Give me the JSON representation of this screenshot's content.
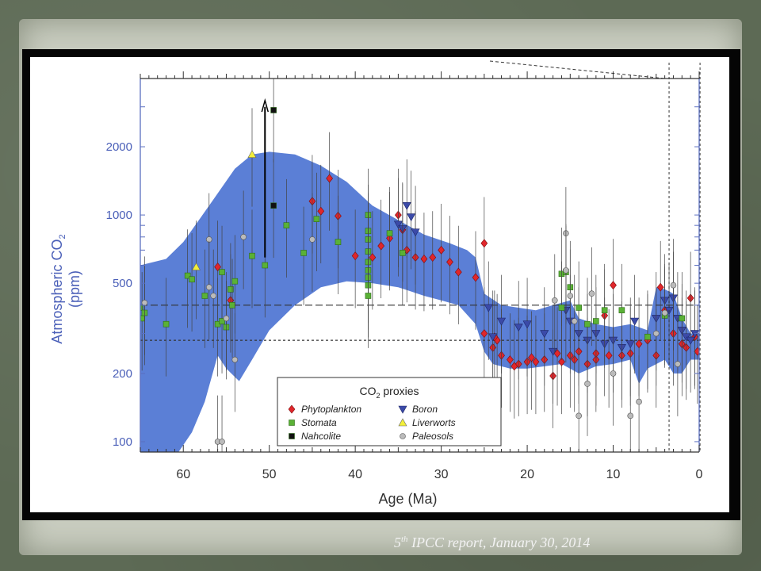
{
  "caption": {
    "sup": "th",
    "prefix": "5",
    "text": " IPCC report, January  30, 2014"
  },
  "chart_data": {
    "type": "scatter",
    "title": "",
    "xlabel": "Age (Ma)",
    "ylabel": "Atmospheric CO2 (ppm)",
    "xlim": [
      65,
      0
    ],
    "ylim": [
      90,
      4000
    ],
    "yscale": "log",
    "x_ticks": [
      60,
      50,
      40,
      30,
      20,
      10,
      0
    ],
    "y_ticks": [
      100,
      200,
      500,
      1000,
      2000
    ],
    "reference_lines": [
      {
        "style": "long-dash",
        "y": 400,
        "x_range": [
          65,
          0
        ]
      },
      {
        "style": "short-dash",
        "y": 280,
        "x_range": [
          65,
          0
        ]
      }
    ],
    "legend": {
      "title": "CO2 proxies",
      "placement": "bottom-center",
      "entries": [
        {
          "label": "Phytoplankton",
          "marker": "diamond",
          "color": "#e0262b"
        },
        {
          "label": "Boron",
          "marker": "triangle-down",
          "color": "#3b4aa8"
        },
        {
          "label": "Stomata",
          "marker": "square",
          "color": "#5ab136"
        },
        {
          "label": "Liverworts",
          "marker": "triangle-up",
          "color": "#f2ef3a"
        },
        {
          "label": "Nahcolite",
          "marker": "square",
          "color": "#111111"
        },
        {
          "label": "Paleosols",
          "marker": "circle",
          "color": "#bbbbbb"
        }
      ]
    },
    "envelope": {
      "color": "#5b7fd6",
      "upper": [
        [
          65,
          600
        ],
        [
          62,
          640
        ],
        [
          60,
          760
        ],
        [
          57,
          1100
        ],
        [
          54,
          1600
        ],
        [
          52,
          1850
        ],
        [
          50,
          1900
        ],
        [
          47,
          1850
        ],
        [
          44,
          1650
        ],
        [
          41,
          1400
        ],
        [
          38,
          1100
        ],
        [
          35,
          950
        ],
        [
          32,
          820
        ],
        [
          29,
          750
        ],
        [
          27,
          700
        ],
        [
          26,
          650
        ],
        [
          25,
          450
        ],
        [
          23,
          400
        ],
        [
          21,
          390
        ],
        [
          19,
          380
        ],
        [
          17,
          400
        ],
        [
          15,
          420
        ],
        [
          14,
          350
        ],
        [
          12,
          330
        ],
        [
          10,
          320
        ],
        [
          8,
          330
        ],
        [
          6,
          310
        ],
        [
          5,
          480
        ],
        [
          4,
          470
        ],
        [
          3,
          450
        ],
        [
          2,
          350
        ],
        [
          1,
          300
        ],
        [
          0,
          300
        ]
      ],
      "lower": [
        [
          0,
          230
        ],
        [
          1,
          230
        ],
        [
          2,
          200
        ],
        [
          3,
          200
        ],
        [
          4,
          230
        ],
        [
          6,
          210
        ],
        [
          7,
          180
        ],
        [
          8,
          230
        ],
        [
          10,
          220
        ],
        [
          12,
          215
        ],
        [
          14,
          200
        ],
        [
          16,
          220
        ],
        [
          18,
          215
        ],
        [
          20,
          210
        ],
        [
          22,
          210
        ],
        [
          24,
          220
        ],
        [
          25,
          250
        ],
        [
          26,
          330
        ],
        [
          28,
          400
        ],
        [
          30,
          420
        ],
        [
          32,
          440
        ],
        [
          35,
          480
        ],
        [
          38,
          500
        ],
        [
          41,
          510
        ],
        [
          44,
          480
        ],
        [
          47,
          400
        ],
        [
          50,
          310
        ],
        [
          52,
          230
        ],
        [
          53.5,
          185
        ],
        [
          55,
          210
        ],
        [
          56,
          240
        ],
        [
          57.5,
          150
        ],
        [
          59,
          110
        ],
        [
          61,
          85
        ],
        [
          65,
          85
        ]
      ]
    },
    "series": [
      {
        "name": "Phytoplankton",
        "points": [
          [
            56,
            590
          ],
          [
            54.5,
            420
          ],
          [
            45,
            1150
          ],
          [
            43,
            1450
          ],
          [
            44,
            1040
          ],
          [
            42,
            990
          ],
          [
            40,
            660
          ],
          [
            38,
            650
          ],
          [
            37,
            730
          ],
          [
            36,
            790
          ],
          [
            35,
            1000
          ],
          [
            34.5,
            860
          ],
          [
            34,
            700
          ],
          [
            33,
            650
          ],
          [
            32,
            640
          ],
          [
            31,
            650
          ],
          [
            30,
            700
          ],
          [
            29,
            620
          ],
          [
            28,
            560
          ],
          [
            26,
            530
          ],
          [
            25,
            750
          ],
          [
            25,
            300
          ],
          [
            24,
            260
          ],
          [
            23.5,
            280
          ],
          [
            23,
            240
          ],
          [
            22,
            230
          ],
          [
            21,
            220
          ],
          [
            20,
            225
          ],
          [
            19,
            225
          ],
          [
            18,
            230
          ],
          [
            17,
            195
          ],
          [
            16,
            225
          ],
          [
            15,
            240
          ],
          [
            14,
            250
          ],
          [
            13,
            220
          ],
          [
            12,
            230
          ],
          [
            11,
            360
          ],
          [
            10,
            490
          ],
          [
            9,
            240
          ],
          [
            8,
            245
          ],
          [
            7,
            270
          ],
          [
            6,
            280
          ],
          [
            5,
            240
          ],
          [
            4.5,
            480
          ],
          [
            4,
            380
          ],
          [
            3,
            300
          ],
          [
            2,
            270
          ],
          [
            1.5,
            260
          ],
          [
            1,
            430
          ],
          [
            0.5,
            290
          ],
          [
            0.2,
            250
          ],
          [
            12,
            245
          ],
          [
            16.5,
            245
          ],
          [
            19.5,
            235
          ],
          [
            21.5,
            215
          ],
          [
            23.8,
            290
          ],
          [
            14.5,
            230
          ],
          [
            10.5,
            240
          ]
        ]
      },
      {
        "name": "Boron",
        "points": [
          [
            35,
            910
          ],
          [
            34,
            1100
          ],
          [
            33.5,
            980
          ],
          [
            33,
            840
          ],
          [
            34.5,
            870
          ],
          [
            24.5,
            390
          ],
          [
            23,
            340
          ],
          [
            21,
            320
          ],
          [
            20,
            330
          ],
          [
            18,
            300
          ],
          [
            17,
            250
          ],
          [
            15.5,
            380
          ],
          [
            15,
            340
          ],
          [
            14,
            300
          ],
          [
            13,
            280
          ],
          [
            12,
            300
          ],
          [
            11,
            270
          ],
          [
            10,
            280
          ],
          [
            9,
            260
          ],
          [
            8,
            270
          ],
          [
            7.5,
            340
          ],
          [
            4,
            420
          ],
          [
            3.5,
            380
          ],
          [
            3,
            430
          ],
          [
            2.5,
            350
          ],
          [
            2,
            310
          ],
          [
            1.5,
            290
          ],
          [
            1,
            280
          ],
          [
            0.5,
            300
          ],
          [
            24,
            290
          ],
          [
            5,
            350
          ]
        ]
      },
      {
        "name": "Stomata",
        "points": [
          [
            65,
            390
          ],
          [
            64.8,
            350
          ],
          [
            64.5,
            370
          ],
          [
            62,
            330
          ],
          [
            59.5,
            540
          ],
          [
            59,
            520
          ],
          [
            57.5,
            440
          ],
          [
            56,
            330
          ],
          [
            55.5,
            560
          ],
          [
            55.5,
            340
          ],
          [
            55,
            320
          ],
          [
            54.5,
            470
          ],
          [
            54.3,
            400
          ],
          [
            54,
            510
          ],
          [
            52,
            660
          ],
          [
            50.5,
            600
          ],
          [
            48,
            900
          ],
          [
            46,
            680
          ],
          [
            44.5,
            960
          ],
          [
            42,
            760
          ],
          [
            38.5,
            1000
          ],
          [
            38.5,
            850
          ],
          [
            38.5,
            780
          ],
          [
            38.5,
            690
          ],
          [
            38.5,
            620
          ],
          [
            38.5,
            570
          ],
          [
            38.5,
            530
          ],
          [
            38.5,
            490
          ],
          [
            38.5,
            440
          ],
          [
            36,
            830
          ],
          [
            34.5,
            680
          ],
          [
            16,
            550
          ],
          [
            16,
            390
          ],
          [
            15.5,
            560
          ],
          [
            15,
            480
          ],
          [
            14,
            390
          ],
          [
            13,
            330
          ],
          [
            12,
            340
          ],
          [
            11,
            380
          ],
          [
            9,
            380
          ],
          [
            6,
            290
          ],
          [
            4,
            360
          ],
          [
            2,
            350
          ]
        ]
      },
      {
        "name": "Liverworts",
        "points": [
          [
            58.5,
            590
          ],
          [
            52,
            1850
          ]
        ]
      },
      {
        "name": "Nahcolite",
        "points": [
          [
            49.5,
            2900
          ],
          [
            49.5,
            1100
          ]
        ]
      },
      {
        "name": "Paleosols",
        "points": [
          [
            64.5,
            410
          ],
          [
            57,
            780
          ],
          [
            57,
            480
          ],
          [
            56.5,
            440
          ],
          [
            56,
            100
          ],
          [
            55.5,
            100
          ],
          [
            55,
            350
          ],
          [
            54,
            230
          ],
          [
            53,
            800
          ],
          [
            45,
            780
          ],
          [
            15.5,
            830
          ],
          [
            15,
            440
          ],
          [
            14,
            130
          ],
          [
            13,
            180
          ],
          [
            12.5,
            450
          ],
          [
            10,
            200
          ],
          [
            8,
            130
          ],
          [
            7,
            150
          ],
          [
            5,
            300
          ],
          [
            4,
            370
          ],
          [
            3,
            490
          ],
          [
            2.5,
            220
          ],
          [
            15.5,
            570
          ],
          [
            14.5,
            340
          ],
          [
            16.8,
            420
          ]
        ]
      }
    ]
  }
}
